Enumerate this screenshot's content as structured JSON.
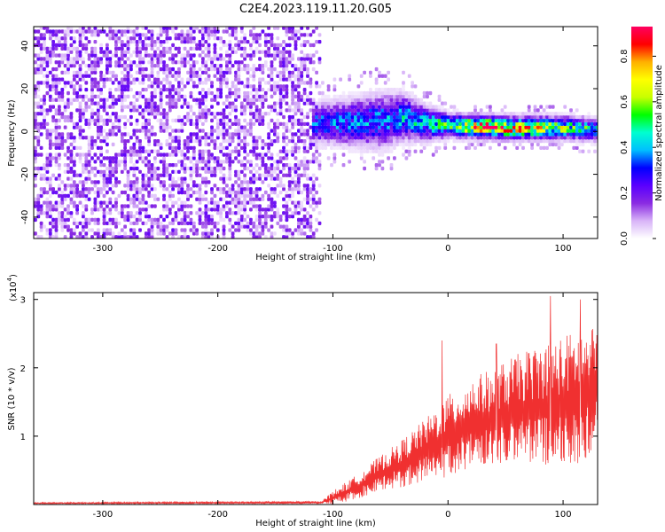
{
  "figure": {
    "title": "C2E4.2023.119.11.20.G05"
  },
  "chart_data": [
    {
      "type": "heatmap",
      "xlabel": "Height of straight line (km)",
      "ylabel": "Frequency (Hz)",
      "xlim": [
        -360,
        130
      ],
      "ylim": [
        -50,
        49
      ],
      "xticks": [
        -300,
        -200,
        -100,
        0,
        100
      ],
      "yticks": [
        -40,
        -20,
        0,
        20,
        40
      ],
      "ytick_labels": [
        "-40",
        "-20",
        "0",
        "20",
        "40"
      ],
      "grid": false,
      "colorbar": {
        "label": "Normalized spectral amplitude",
        "range": [
          0,
          0.93
        ],
        "ticks": [
          0.0,
          0.2,
          0.4,
          0.6,
          0.8
        ],
        "tick_labels": [
          "0.0",
          "0.2",
          "0.4",
          "0.6",
          "0.8"
        ],
        "colormap": [
          "#ffffff",
          "#d8b4f8",
          "#8a2be2",
          "#5a00ff",
          "#0000ff",
          "#00bfff",
          "#00ffd0",
          "#00ff00",
          "#c8ff00",
          "#ffff00",
          "#ffb000",
          "#ff0000",
          "#ff0060"
        ]
      },
      "regions": [
        {
          "x_range": [
            -360,
            -112
          ],
          "description_level": 0.12,
          "freq_spread": 49
        },
        {
          "x_range": [
            -120,
            130
          ],
          "center_freq": [
            [
              -120,
              3
            ],
            [
              -60,
              4
            ],
            [
              -40,
              6
            ],
            [
              -20,
              3
            ],
            [
              0,
              2
            ],
            [
              50,
              1
            ],
            [
              100,
              1
            ],
            [
              130,
              0
            ]
          ],
          "half_width": [
            [
              -120,
              10
            ],
            [
              -60,
              14
            ],
            [
              -40,
              12
            ],
            [
              0,
              6
            ],
            [
              130,
              6
            ]
          ],
          "peak_amplitude": [
            [
              -120,
              0.35
            ],
            [
              -60,
              0.4
            ],
            [
              -20,
              0.45
            ],
            [
              10,
              0.7
            ],
            [
              30,
              0.85
            ],
            [
              70,
              0.75
            ],
            [
              130,
              0.45
            ]
          ]
        }
      ]
    },
    {
      "type": "line",
      "xlabel": "Height of straight line (km)",
      "ylabel": "SNR (10 * v/v)",
      "y_multiplier": "(x10",
      "y_multiplier_exp": "4",
      "y_multiplier_close": ")",
      "xlim": [
        -360,
        130
      ],
      "ylim": [
        0,
        3.1
      ],
      "xticks": [
        -300,
        -200,
        -100,
        0,
        100
      ],
      "yticks": [
        1,
        2,
        3
      ],
      "ytick_labels": [
        "1",
        "2",
        "3"
      ],
      "grid": false,
      "series": [
        {
          "color": "#f03030",
          "envelope": [
            [
              -360,
              0.02
            ],
            [
              -110,
              0.03
            ],
            [
              -100,
              0.1
            ],
            [
              -80,
              0.25
            ],
            [
              -60,
              0.45
            ],
            [
              -40,
              0.6
            ],
            [
              -20,
              0.8
            ],
            [
              0,
              1.0
            ],
            [
              20,
              1.2
            ],
            [
              40,
              1.3
            ],
            [
              60,
              1.4
            ],
            [
              80,
              1.45
            ],
            [
              100,
              1.5
            ],
            [
              120,
              1.6
            ],
            [
              130,
              1.7
            ]
          ],
          "spread": [
            [
              -360,
              0.01
            ],
            [
              -110,
              0.02
            ],
            [
              -100,
              0.1
            ],
            [
              -60,
              0.25
            ],
            [
              -20,
              0.45
            ],
            [
              0,
              0.6
            ],
            [
              40,
              0.7
            ],
            [
              80,
              0.9
            ],
            [
              110,
              1.0
            ],
            [
              130,
              0.9
            ]
          ],
          "peaks": [
            [
              -5,
              2.4
            ],
            [
              42,
              2.35
            ],
            [
              89,
              3.05
            ],
            [
              115,
              3.0
            ],
            [
              125,
              2.55
            ]
          ]
        }
      ]
    }
  ]
}
